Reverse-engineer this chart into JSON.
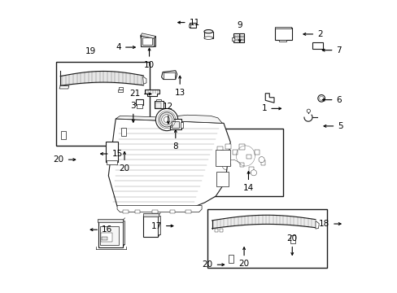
{
  "background_color": "#ffffff",
  "line_color": "#1a1a1a",
  "figsize": [
    4.89,
    3.6
  ],
  "dpi": 100,
  "label_positions": {
    "1": [
      0.755,
      0.63,
      -1,
      0
    ],
    "2": [
      0.885,
      0.885,
      1,
      0
    ],
    "3": [
      0.275,
      0.61,
      0,
      1
    ],
    "4": [
      0.255,
      0.84,
      -1,
      0
    ],
    "5": [
      0.955,
      0.57,
      1,
      0
    ],
    "6": [
      0.95,
      0.66,
      1,
      0
    ],
    "7": [
      0.95,
      0.83,
      1,
      0
    ],
    "8": [
      0.42,
      0.53,
      0,
      -1
    ],
    "9": [
      0.64,
      0.885,
      0,
      1
    ],
    "10": [
      0.33,
      0.81,
      0,
      -1
    ],
    "11": [
      0.455,
      0.925,
      1,
      0
    ],
    "12": [
      0.395,
      0.605,
      0,
      1
    ],
    "13": [
      0.435,
      0.715,
      0,
      -1
    ],
    "14": [
      0.67,
      0.388,
      0,
      -1
    ],
    "15": [
      0.19,
      0.475,
      1,
      0
    ],
    "16": [
      0.155,
      0.215,
      1,
      0
    ],
    "17": [
      0.385,
      0.228,
      -1,
      0
    ],
    "18": [
      0.96,
      0.235,
      -1,
      0
    ],
    "19": [
      0.13,
      0.825,
      0,
      0
    ],
    "20a": [
      0.245,
      0.455,
      0,
      -1
    ],
    "20b": [
      0.05,
      0.455,
      -1,
      0
    ],
    "20c": [
      0.655,
      0.128,
      0,
      -1
    ],
    "20d": [
      0.56,
      0.095,
      -1,
      0
    ],
    "20e": [
      0.82,
      0.155,
      0,
      1
    ],
    "21": [
      0.31,
      0.68,
      -1,
      0
    ]
  },
  "boxes": {
    "19": [
      0.012,
      0.502,
      0.33,
      0.79
    ],
    "14": [
      0.535,
      0.33,
      0.79,
      0.562
    ],
    "18": [
      0.53,
      0.085,
      0.94,
      0.285
    ]
  }
}
